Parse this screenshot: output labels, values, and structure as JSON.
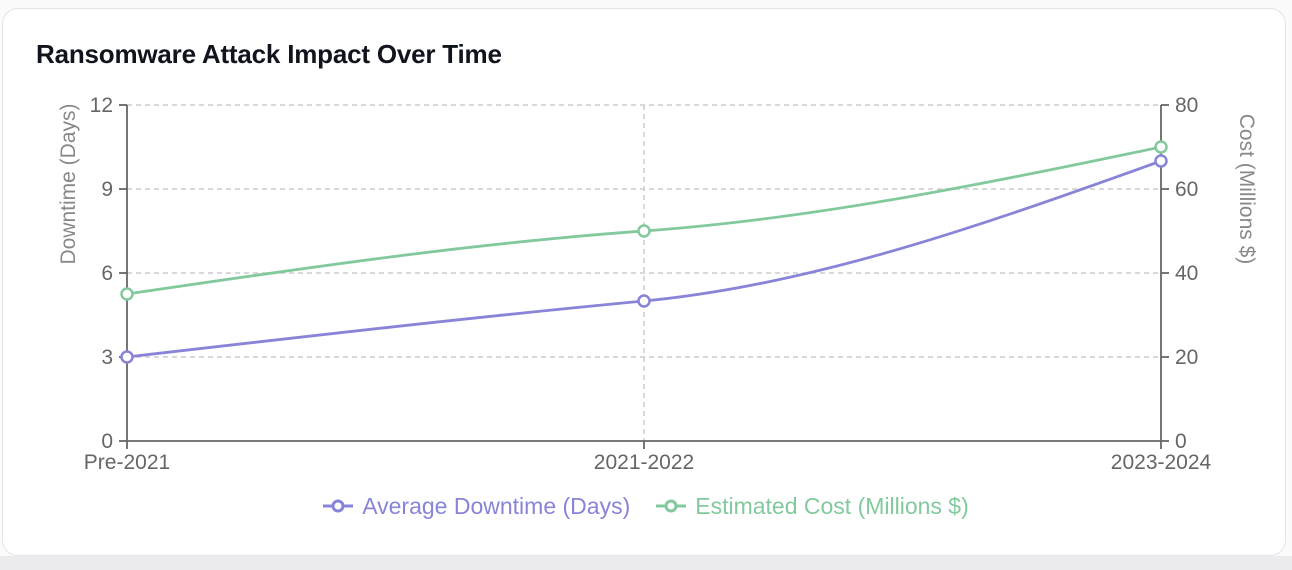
{
  "page": {
    "background": "#fbfbfc",
    "gutter_color": "#ececee",
    "card_background": "#ffffff",
    "card_border_color": "#e3e5e8"
  },
  "card": {
    "title": "Ransomware Attack Impact Over Time"
  },
  "chart_data": {
    "type": "line",
    "title": "Ransomware Attack Impact Over Time",
    "categories": [
      "Pre-2021",
      "2021-2022",
      "2023-2024"
    ],
    "series": [
      {
        "name": "Average Downtime (Days)",
        "axis": "left",
        "color": "#8884d8",
        "values": [
          3,
          5,
          10
        ]
      },
      {
        "name": "Estimated Cost (Millions $)",
        "axis": "right",
        "color": "#82ca9d",
        "values": [
          35,
          50,
          70
        ]
      }
    ],
    "axes": {
      "left": {
        "label": "Downtime (Days)",
        "min": 0,
        "max": 12,
        "ticks": [
          0,
          3,
          6,
          9,
          12
        ]
      },
      "right": {
        "label": "Cost (Millions $)",
        "min": 0,
        "max": 80,
        "ticks": [
          0,
          20,
          40,
          60,
          80
        ]
      },
      "x": {
        "tick_labels": [
          "Pre-2021",
          "2021-2022",
          "2023-2024"
        ]
      }
    },
    "legend": {
      "position": "bottom",
      "entries": [
        "Average Downtime (Days)",
        "Estimated Cost (Millions $)"
      ]
    },
    "style": {
      "curve": "monotone",
      "grid": "dashed",
      "grid_color": "#cccccc",
      "axis_color": "#666666",
      "tick_label_color": "#666666",
      "axis_label_color": "#888888",
      "marker": "hollow-circle"
    }
  }
}
